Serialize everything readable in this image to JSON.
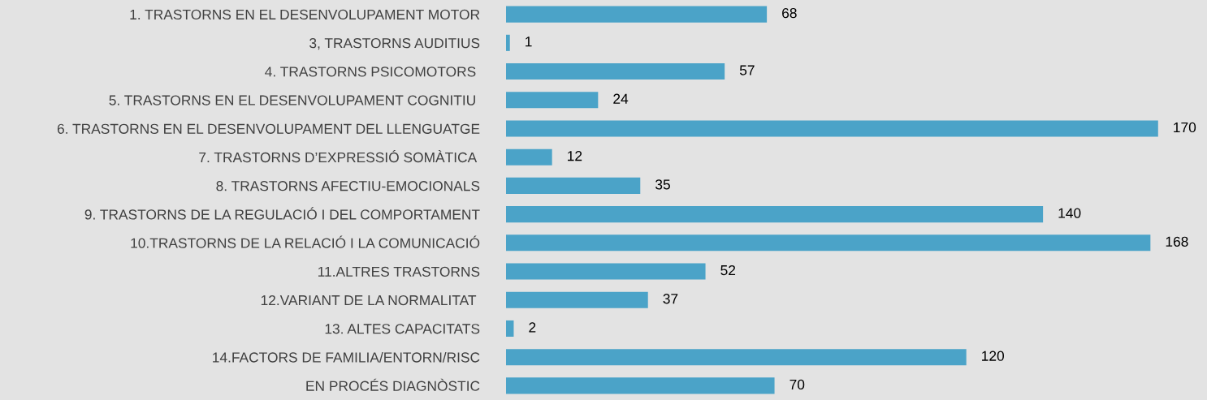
{
  "chart_data": {
    "type": "bar",
    "orientation": "horizontal",
    "categories": [
      "1. TRASTORNS EN EL DESENVOLUPAMENT MOTOR",
      "3, TRASTORNS AUDITIUS",
      "4. TRASTORNS PSICOMOTORS ",
      "5. TRASTORNS EN EL DESENVOLUPAMENT COGNITIU ",
      "6. TRASTORNS EN EL DESENVOLUPAMENT DEL LLENGUATGE",
      "7. TRASTORNS D’EXPRESSIÓ SOMÀTICA ",
      "8. TRASTORNS AFECTIU-EMOCIONALS",
      "9. TRASTORNS DE LA REGULACIÓ I DEL COMPORTAMENT",
      "10.TRASTORNS DE LA RELACIÓ I LA COMUNICACIÓ",
      "11.ALTRES TRASTORNS",
      "12.VARIANT DE LA NORMALITAT ",
      "13. ALTES CAPACITATS",
      "14.FACTORS DE FAMILIA/ENTORN/RISC",
      "EN PROCÉS DIAGNÒSTIC"
    ],
    "values": [
      68,
      1,
      57,
      24,
      170,
      12,
      35,
      140,
      168,
      52,
      37,
      2,
      120,
      70
    ],
    "color": "#4ba3c8",
    "data_labels": true
  }
}
